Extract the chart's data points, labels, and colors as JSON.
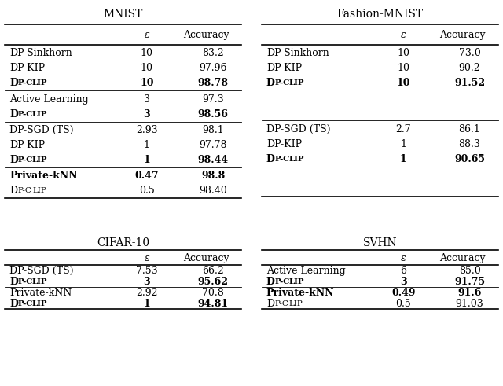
{
  "tables": {
    "MNIST": {
      "title": "MNIST",
      "groups": [
        {
          "rows": [
            {
              "method": "DP-Sinkhorn",
              "epsilon": "10",
              "accuracy": "83.2",
              "bold": false,
              "dp_clip": false
            },
            {
              "method": "DP-KIP",
              "epsilon": "10",
              "accuracy": "97.96",
              "bold": false,
              "dp_clip": false
            },
            {
              "method": "DP-CLIP",
              "epsilon": "10",
              "accuracy": "98.78",
              "bold": true,
              "dp_clip": true
            }
          ]
        },
        {
          "rows": [
            {
              "method": "Active Learning",
              "epsilon": "3",
              "accuracy": "97.3",
              "bold": false,
              "dp_clip": false
            },
            {
              "method": "DP-CLIP",
              "epsilon": "3",
              "accuracy": "98.56",
              "bold": true,
              "dp_clip": true
            }
          ]
        },
        {
          "rows": [
            {
              "method": "DP-SGD (TS)",
              "epsilon": "2.93",
              "accuracy": "98.1",
              "bold": false,
              "dp_clip": false
            },
            {
              "method": "DP-KIP",
              "epsilon": "1",
              "accuracy": "97.78",
              "bold": false,
              "dp_clip": false
            },
            {
              "method": "DP-CLIP",
              "epsilon": "1",
              "accuracy": "98.44",
              "bold": true,
              "dp_clip": true
            }
          ]
        },
        {
          "rows": [
            {
              "method": "Private-kNN",
              "epsilon": "0.47",
              "accuracy": "98.8",
              "bold": true,
              "dp_clip": false
            },
            {
              "method": "DP-CLIP",
              "epsilon": "0.5",
              "accuracy": "98.40",
              "bold": false,
              "dp_clip": true
            }
          ]
        }
      ]
    },
    "Fashion-MNIST": {
      "title": "Fashion-MNIST",
      "groups": [
        {
          "rows": [
            {
              "method": "DP-Sinkhorn",
              "epsilon": "10",
              "accuracy": "73.0",
              "bold": false,
              "dp_clip": false
            },
            {
              "method": "DP-KIP",
              "epsilon": "10",
              "accuracy": "90.2",
              "bold": false,
              "dp_clip": false
            },
            {
              "method": "DP-CLIP",
              "epsilon": "10",
              "accuracy": "91.52",
              "bold": true,
              "dp_clip": true
            }
          ]
        },
        {
          "rows": []
        },
        {
          "rows": [
            {
              "method": "DP-SGD (TS)",
              "epsilon": "2.7",
              "accuracy": "86.1",
              "bold": false,
              "dp_clip": false
            },
            {
              "method": "DP-KIP",
              "epsilon": "1",
              "accuracy": "88.3",
              "bold": false,
              "dp_clip": false
            },
            {
              "method": "DP-CLIP",
              "epsilon": "1",
              "accuracy": "90.65",
              "bold": true,
              "dp_clip": true
            }
          ]
        },
        {
          "rows": []
        }
      ]
    },
    "CIFAR-10": {
      "title": "CIFAR-10",
      "groups": [
        {
          "rows": [
            {
              "method": "DP-SGD (TS)",
              "epsilon": "7.53",
              "accuracy": "66.2",
              "bold": false,
              "dp_clip": false
            },
            {
              "method": "DP-CLIP",
              "epsilon": "3",
              "accuracy": "95.62",
              "bold": true,
              "dp_clip": true
            }
          ]
        },
        {
          "rows": [
            {
              "method": "Private-kNN",
              "epsilon": "2.92",
              "accuracy": "70.8",
              "bold": false,
              "dp_clip": false
            },
            {
              "method": "DP-CLIP",
              "epsilon": "1",
              "accuracy": "94.81",
              "bold": true,
              "dp_clip": true
            }
          ]
        }
      ]
    },
    "SVHN": {
      "title": "SVHN",
      "groups": [
        {
          "rows": [
            {
              "method": "Active Learning",
              "epsilon": "6",
              "accuracy": "85.0",
              "bold": false,
              "dp_clip": false
            },
            {
              "method": "DP-CLIP",
              "epsilon": "3",
              "accuracy": "91.75",
              "bold": true,
              "dp_clip": true
            }
          ]
        },
        {
          "rows": [
            {
              "method": "Private-kNN",
              "epsilon": "0.49",
              "accuracy": "91.6",
              "bold": true,
              "dp_clip": false
            },
            {
              "method": "DP-CLIP",
              "epsilon": "0.5",
              "accuracy": "91.03",
              "bold": false,
              "dp_clip": true
            }
          ]
        }
      ]
    }
  },
  "col_header_epsilon": "ε",
  "col_header_accuracy": "Accuracy",
  "font_size": 9,
  "title_font_size": 10,
  "bg_color": "#ffffff"
}
